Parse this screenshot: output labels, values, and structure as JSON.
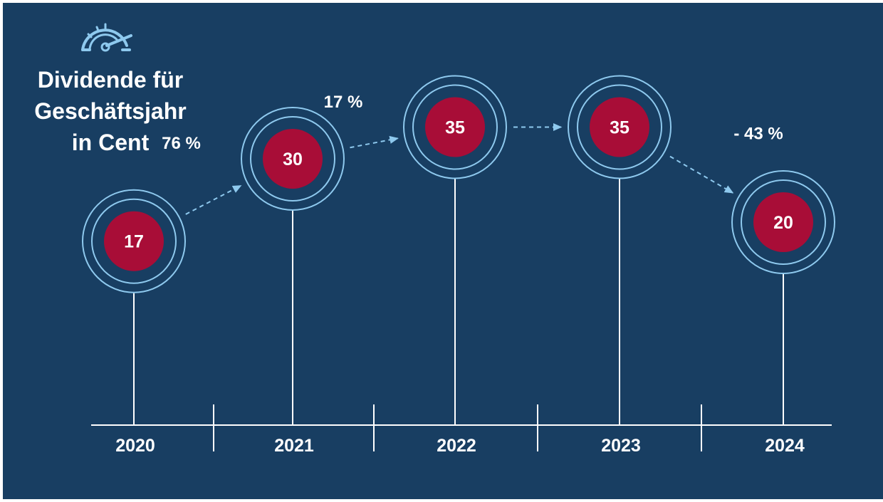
{
  "chart_data": {
    "type": "timeline",
    "title_lines": [
      "Dividende für",
      "Geschäftsjahr",
      "in Cent"
    ],
    "categories": [
      "2020",
      "2021",
      "2022",
      "2023",
      "2024"
    ],
    "values": [
      17,
      30,
      35,
      35,
      20
    ],
    "changes": [
      {
        "from": "2020",
        "to": "2021",
        "label": "76 %"
      },
      {
        "from": "2021",
        "to": "2022",
        "label": "17 %"
      },
      {
        "from": "2022",
        "to": "2023",
        "label": ""
      },
      {
        "from": "2023",
        "to": "2024",
        "label": "- 43 %"
      }
    ]
  },
  "icon": "speedometer-icon",
  "colors": {
    "background": "#183e62",
    "marker": "#a80d37",
    "ring": "#8ec9ee",
    "text": "#ffffff"
  }
}
